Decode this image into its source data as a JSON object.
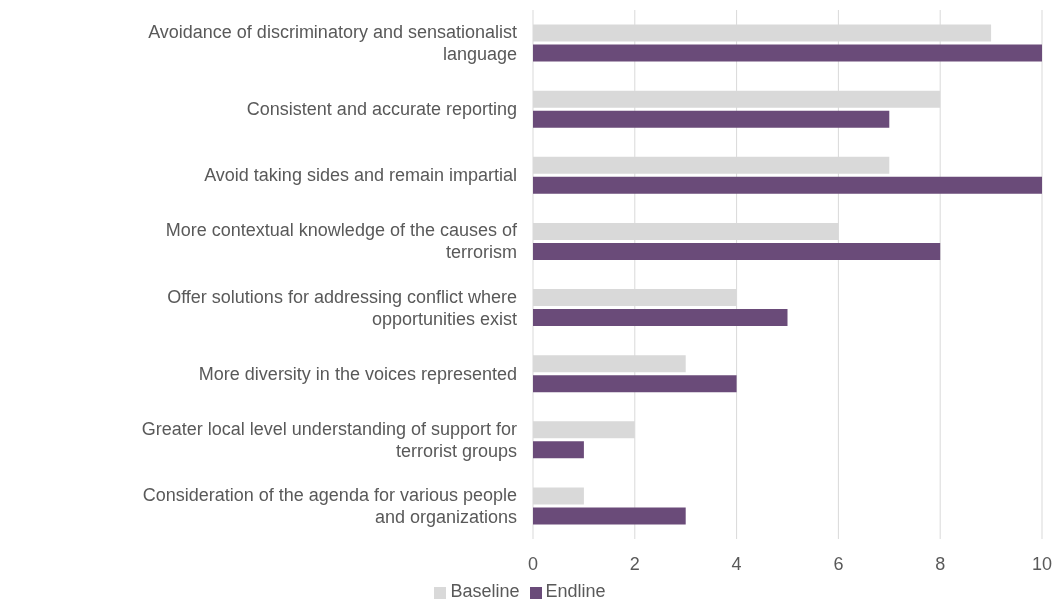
{
  "chart_data": {
    "type": "bar",
    "orientation": "horizontal",
    "categories": [
      "Avoidance of discriminatory and sensationalist language",
      "Consistent and accurate reporting",
      "Avoid taking sides and remain impartial",
      "More contextual knowledge of the causes of terrorism",
      "Offer solutions for addressing conflict where opportunities exist",
      "More diversity in the voices represented",
      "Greater local level understanding of support for terrorist groups",
      "Consideration of the agenda for various people and organizations"
    ],
    "series": [
      {
        "name": "Baseline",
        "color": "#d9d9d9",
        "values": [
          9,
          8,
          7,
          6,
          4,
          3,
          2,
          1
        ]
      },
      {
        "name": "Endline",
        "color": "#6a4b79",
        "values": [
          10,
          7,
          10,
          8,
          5,
          4,
          1,
          3
        ]
      }
    ],
    "xlim": [
      0,
      10
    ],
    "xticks": [
      0,
      2,
      4,
      6,
      8,
      10
    ],
    "grid": "x",
    "legend": "bottom"
  }
}
